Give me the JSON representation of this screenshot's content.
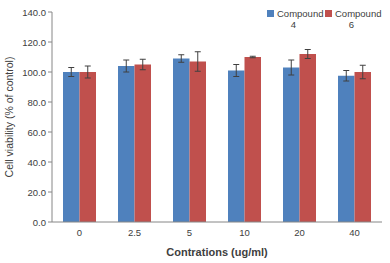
{
  "chart_data": {
    "type": "bar",
    "x_label": "Contrations (ug/ml)",
    "y_label": "Cell viability (% of control)",
    "categories": [
      "0",
      "2.5",
      "5",
      "10",
      "20",
      "40"
    ],
    "series": [
      {
        "name": "Compound 4",
        "color": "#4f81bd",
        "values": [
          100,
          104,
          109,
          101,
          103,
          97.5
        ],
        "errors": [
          3,
          4,
          2.5,
          4,
          5,
          3.5
        ]
      },
      {
        "name": "Compound 6",
        "color": "#c0504d",
        "values": [
          100,
          105,
          107,
          110,
          112,
          100
        ],
        "errors": [
          4,
          3.5,
          6.5,
          0.5,
          3,
          4.5
        ]
      }
    ],
    "ylim": [
      0,
      140
    ],
    "yticks": [
      {
        "value": 0,
        "label": "0.0"
      },
      {
        "value": 20,
        "label": "20.0"
      },
      {
        "value": 40,
        "label": "40.0"
      },
      {
        "value": 60,
        "label": "60.0"
      },
      {
        "value": 80,
        "label": "80.0"
      },
      {
        "value": 100,
        "label": "100.0"
      },
      {
        "value": 120,
        "label": "120.0"
      },
      {
        "value": 140,
        "label": "140.0"
      }
    ],
    "grid": false,
    "legend": "top-right"
  }
}
